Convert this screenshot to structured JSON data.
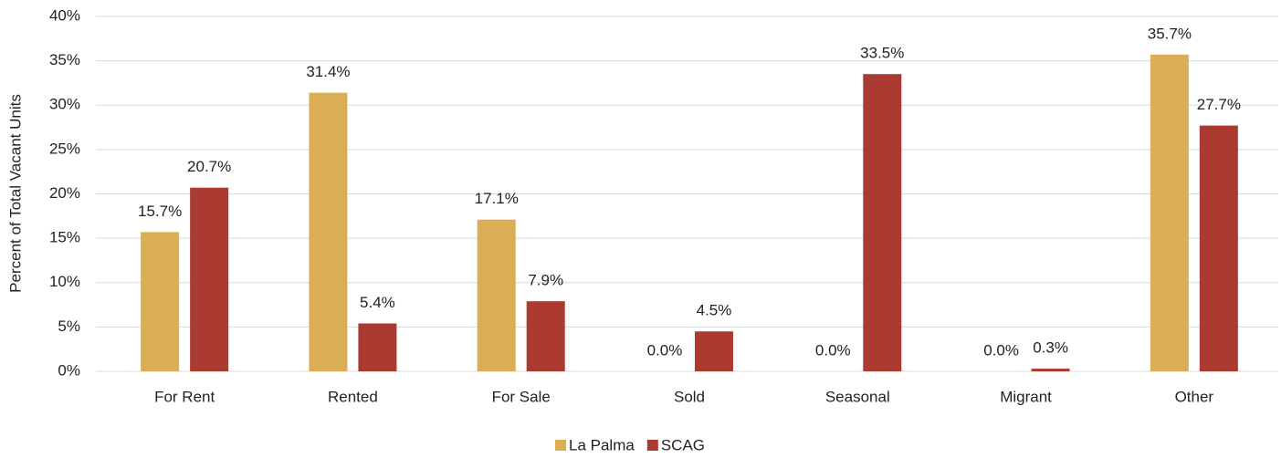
{
  "chart_data": {
    "type": "bar",
    "y_label": "Percent of Total Vacant Units",
    "categories": [
      "For Rent",
      "Rented",
      "For Sale",
      "Sold",
      "Seasonal",
      "Migrant",
      "Other"
    ],
    "series": [
      {
        "name": "La Palma",
        "color": "#d9ae55",
        "values": [
          15.7,
          31.4,
          17.1,
          0.0,
          0.0,
          0.0,
          35.7
        ],
        "value_labels": [
          "15.7%",
          "31.4%",
          "17.1%",
          "0.0%",
          "0.0%",
          "0.0%",
          "35.7%"
        ]
      },
      {
        "name": "SCAG",
        "color": "#ab3b31",
        "values": [
          20.7,
          5.4,
          7.9,
          4.5,
          33.5,
          0.3,
          27.7
        ],
        "value_labels": [
          "20.7%",
          "5.4%",
          "7.9%",
          "4.5%",
          "33.5%",
          "0.3%",
          "27.7%"
        ]
      }
    ],
    "ylim": [
      0,
      40
    ],
    "yticks": [
      {
        "value": 0,
        "label": "0%"
      },
      {
        "value": 5,
        "label": "5%"
      },
      {
        "value": 10,
        "label": "10%"
      },
      {
        "value": 15,
        "label": "15%"
      },
      {
        "value": 20,
        "label": "20%"
      },
      {
        "value": 25,
        "label": "25%"
      },
      {
        "value": 30,
        "label": "30%"
      },
      {
        "value": 35,
        "label": "35%"
      },
      {
        "value": 40,
        "label": "40%"
      }
    ],
    "grid": true,
    "legend": "bottom"
  }
}
